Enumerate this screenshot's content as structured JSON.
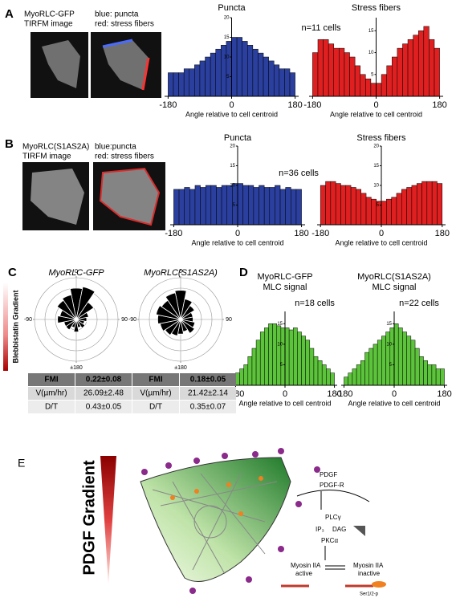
{
  "panel_labels": [
    "A",
    "B",
    "C",
    "D",
    "E"
  ],
  "panel_a": {
    "image_label": [
      "MyoRLC-GFP",
      "TIRFM image"
    ],
    "overlay_label": [
      "blue: puncta",
      "red: stress fibers"
    ]
  },
  "panel_b": {
    "image_label": [
      "MyoRLC(S1AS2A)",
      "TIRFM image"
    ],
    "overlay_label": [
      "blue:puncta",
      "red: stress fibers"
    ]
  },
  "panel_c": {
    "gradient_label": "Blebbistatin Gradient",
    "tables": [
      [
        [
          "FMI",
          "0.22±0.08"
        ],
        [
          "V(µm/hr)",
          "26.09±2.48"
        ],
        [
          "D/T",
          "0.43±0.05"
        ]
      ],
      [
        [
          "FMI",
          "0.18±0.05"
        ],
        [
          "V(µm/hr)",
          "21.42±2.14"
        ],
        [
          "D/T",
          "0.35±0.07"
        ]
      ]
    ]
  },
  "panel_e": {
    "gradient_label": "PDGF Gradient",
    "labels": [
      "PDGF",
      "PDGF-R",
      "PLCγ",
      "IP₃",
      "DAG",
      "PKCα",
      "Myosin IIA",
      "active",
      "Myosin IIA",
      "inactive",
      "Ser1/2-p"
    ]
  },
  "chart_data": [
    {
      "type": "histogram",
      "title": "Puncta",
      "annotation": "n=11 cells",
      "x_label": "Angle relative to cell centroid",
      "color": "#2a3f9e",
      "xlim": [
        -190,
        190
      ],
      "xticks": [
        -180,
        0,
        180
      ],
      "ylim": [
        0,
        20
      ],
      "yticks": [
        5,
        10,
        15,
        20
      ],
      "bins": [
        -180,
        -165,
        -150,
        -135,
        -120,
        -105,
        -90,
        -75,
        -60,
        -45,
        -30,
        -15,
        0,
        15,
        30,
        45,
        60,
        75,
        90,
        105,
        120,
        135,
        150,
        165,
        180
      ],
      "values": [
        6,
        6,
        6,
        7,
        7,
        8,
        9,
        10,
        11,
        12,
        13,
        14,
        15,
        15,
        14,
        13,
        12,
        11,
        10,
        9,
        8,
        7,
        7,
        6
      ]
    },
    {
      "type": "histogram",
      "title": "Stress fibers",
      "x_label": "Angle relative to cell centroid",
      "color": "#e02020",
      "xlim": [
        -190,
        190
      ],
      "xticks": [
        -180,
        0,
        180
      ],
      "ylim": [
        0,
        18
      ],
      "yticks": [
        5,
        10,
        15
      ],
      "bins": [
        -180,
        -165,
        -150,
        -135,
        -120,
        -105,
        -90,
        -75,
        -60,
        -45,
        -30,
        -15,
        0,
        15,
        30,
        45,
        60,
        75,
        90,
        105,
        120,
        135,
        150,
        165,
        180
      ],
      "values": [
        10,
        13,
        13,
        12,
        11,
        11,
        10,
        9,
        7,
        5,
        4,
        3,
        3,
        5,
        7,
        9,
        11,
        12,
        13,
        14,
        15,
        16,
        13,
        11
      ]
    },
    {
      "type": "histogram",
      "title": "Puncta",
      "annotation": "n=36 cells",
      "x_label": "Angle relative to cell centroid",
      "color": "#2a3f9e",
      "xlim": [
        -190,
        190
      ],
      "xticks": [
        -180,
        0,
        180
      ],
      "ylim": [
        0,
        20
      ],
      "yticks": [
        5,
        10,
        15,
        20
      ],
      "bins": [
        -180,
        -165,
        -150,
        -135,
        -120,
        -105,
        -90,
        -75,
        -60,
        -45,
        -30,
        -15,
        0,
        15,
        30,
        45,
        60,
        75,
        90,
        105,
        120,
        135,
        150,
        165,
        180
      ],
      "values": [
        9,
        9,
        9.5,
        9,
        10,
        9.5,
        10,
        10,
        9.5,
        10,
        10,
        10.5,
        10.5,
        10,
        10,
        9.5,
        10,
        9.5,
        9.5,
        10,
        9,
        9.5,
        9,
        9
      ]
    },
    {
      "type": "histogram",
      "title": "Stress fibers",
      "x_label": "Angle relative to cell centroid",
      "color": "#e02020",
      "xlim": [
        -190,
        190
      ],
      "xticks": [
        -180,
        0,
        180
      ],
      "ylim": [
        0,
        20
      ],
      "yticks": [
        5,
        10,
        15,
        20
      ],
      "bins": [
        -180,
        -165,
        -150,
        -135,
        -120,
        -105,
        -90,
        -75,
        -60,
        -45,
        -30,
        -15,
        0,
        15,
        30,
        45,
        60,
        75,
        90,
        105,
        120,
        135,
        150,
        165,
        180
      ],
      "values": [
        10,
        11,
        11,
        10.5,
        10,
        10,
        9.5,
        9,
        8,
        7,
        6.5,
        6,
        6,
        6.5,
        7,
        8,
        9,
        9.5,
        10,
        10.5,
        11,
        11,
        11,
        10.5
      ]
    },
    {
      "type": "rose",
      "title": "MyoRLC-GFP",
      "rlim": [
        0,
        1
      ],
      "angle_labels": [
        0,
        90,
        {
          "value": 180,
          "label": "±180"
        },
        -90
      ],
      "values": [
        0.75,
        0.8,
        0.5,
        0.3,
        0.25,
        0.2,
        0.25,
        0.2,
        0.3,
        0.2,
        0.3,
        0.3,
        0.45,
        0.4,
        0.55,
        0.6
      ]
    },
    {
      "type": "rose",
      "title": "MyoRLC(S1AS2A)",
      "rlim": [
        0,
        1
      ],
      "angle_labels": [
        0,
        90,
        {
          "value": 180,
          "label": "±180"
        },
        -90
      ],
      "values": [
        0.7,
        0.5,
        0.4,
        0.3,
        0.3,
        0.35,
        0.4,
        0.3,
        0.35,
        0.4,
        0.45,
        0.5,
        0.55,
        0.6,
        0.55,
        0.65
      ]
    },
    {
      "type": "histogram",
      "title": "MyoRLC-GFP",
      "subtitle": "MLC signal",
      "annotation": "n=18 cells",
      "x_label": "Angle relative to cell centroid",
      "color": "#5cc43a",
      "xlim": [
        -190,
        190
      ],
      "xticks": [
        -180,
        0,
        180
      ],
      "ylim": [
        0,
        18
      ],
      "yticks": [
        5,
        10,
        15
      ],
      "bins": [
        -180,
        -165,
        -150,
        -135,
        -120,
        -105,
        -90,
        -75,
        -60,
        -45,
        -30,
        -15,
        0,
        15,
        30,
        45,
        60,
        75,
        90,
        105,
        120,
        135,
        150,
        165,
        180
      ],
      "values": [
        3,
        4,
        5,
        7,
        9,
        11,
        13,
        14,
        15,
        15,
        14.5,
        14,
        14,
        13.5,
        14,
        13,
        12,
        11,
        9,
        7,
        6,
        5,
        4,
        3
      ]
    },
    {
      "type": "histogram",
      "title": "MyoRLC(S1AS2A)",
      "subtitle": "MLC signal",
      "annotation": "n=22 cells",
      "x_label": "Angle relative to cell centroid",
      "color": "#5cc43a",
      "xlim": [
        -190,
        190
      ],
      "xticks": [
        -180,
        0,
        180
      ],
      "ylim": [
        0,
        18
      ],
      "yticks": [
        5,
        10,
        15
      ],
      "bins": [
        -180,
        -165,
        -150,
        -135,
        -120,
        -105,
        -90,
        -75,
        -60,
        -45,
        -30,
        -15,
        0,
        15,
        30,
        45,
        60,
        75,
        90,
        105,
        120,
        135,
        150,
        165,
        180
      ],
      "values": [
        2,
        3,
        4,
        5,
        6,
        8,
        9,
        10,
        11,
        12,
        13,
        14,
        15,
        14,
        13,
        12,
        11,
        9,
        7,
        6,
        5,
        5,
        4,
        4
      ]
    }
  ]
}
